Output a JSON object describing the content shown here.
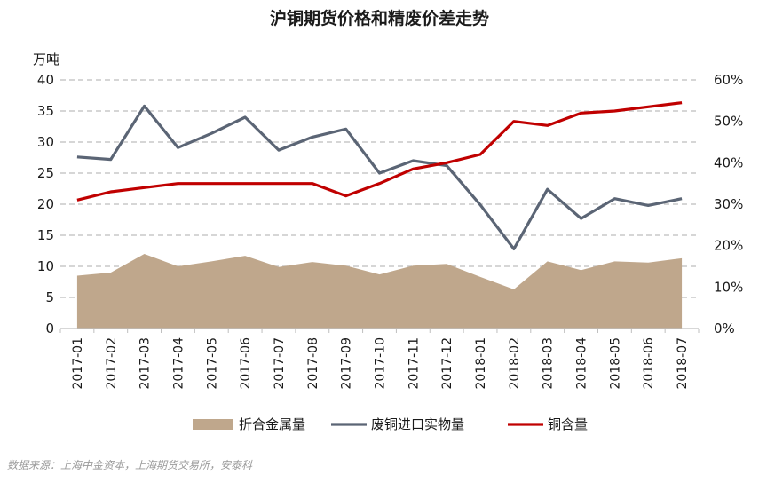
{
  "chart_data": {
    "type": "line",
    "title": "沪铜期货价格和精废价差走势",
    "ylabel_left": "万吨",
    "ylim_left": [
      0,
      40
    ],
    "ylim_right": [
      0,
      60
    ],
    "y_left_ticks": [
      "0",
      "5",
      "10",
      "15",
      "20",
      "25",
      "30",
      "35",
      "40"
    ],
    "y_right_ticks": [
      "0%",
      "10%",
      "20%",
      "30%",
      "40%",
      "50%",
      "60%"
    ],
    "grid": true,
    "legend_position": "bottom",
    "categories": [
      "2017-01",
      "2017-02",
      "2017-03",
      "2017-04",
      "2017-05",
      "2017-06",
      "2017-07",
      "2017-08",
      "2017-09",
      "2017-10",
      "2017-11",
      "2017-12",
      "2018-01",
      "2018-02",
      "2018-03",
      "2018-04",
      "2018-05",
      "2018-06",
      "2018-07"
    ],
    "series": [
      {
        "name": "折合金属量",
        "type": "area",
        "axis": "left",
        "color": "#bfa78c",
        "values": [
          8.5,
          9.0,
          12.0,
          10.0,
          10.8,
          11.7,
          9.9,
          10.7,
          10.1,
          8.7,
          10.1,
          10.4,
          8.3,
          6.3,
          10.8,
          9.4,
          10.8,
          10.6,
          11.3
        ]
      },
      {
        "name": "废铜进口实物量",
        "type": "line",
        "axis": "left",
        "color": "#5b6575",
        "values": [
          27.6,
          27.2,
          35.8,
          29.1,
          31.4,
          34.0,
          28.7,
          30.8,
          32.1,
          25.0,
          27.0,
          26.2,
          19.9,
          12.8,
          22.4,
          17.7,
          20.9,
          19.8,
          20.9
        ]
      },
      {
        "name": "铜含量",
        "type": "line",
        "axis": "right",
        "color": "#c00000",
        "values": [
          31,
          33,
          34,
          35,
          35,
          35,
          35,
          35,
          32,
          35,
          38.5,
          40,
          42,
          50,
          49,
          52,
          52.5,
          53.5,
          54.5
        ]
      }
    ]
  },
  "source_note": "数据来源：上海中金资本，上海期货交易所，安泰科"
}
